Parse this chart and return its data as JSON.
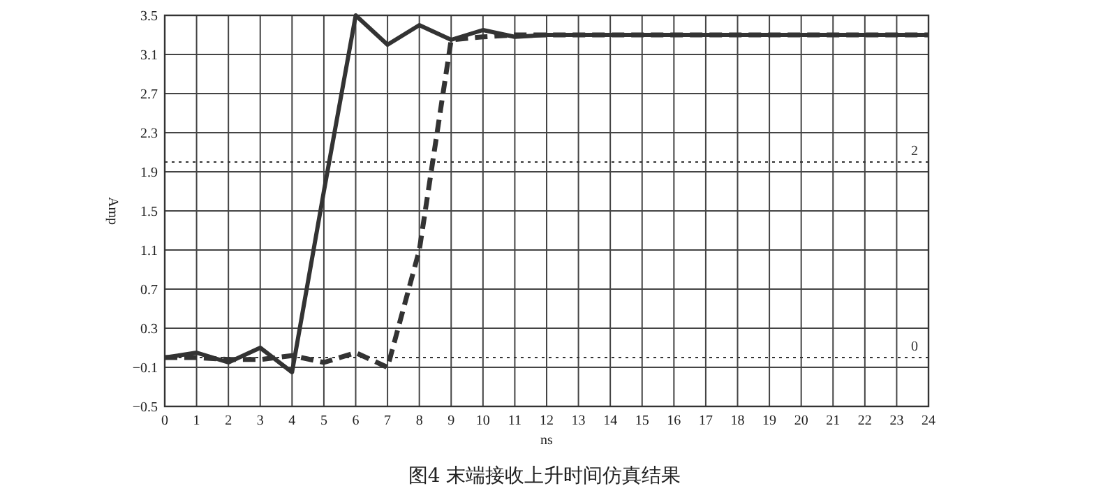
{
  "chart_data": {
    "type": "line",
    "xlabel": "ns",
    "ylabel": "Amp",
    "x": [
      0,
      1,
      2,
      3,
      4,
      5,
      6,
      7,
      8,
      9,
      10,
      11,
      12,
      13,
      14,
      15,
      16,
      17,
      18,
      19,
      20,
      21,
      22,
      23,
      24
    ],
    "series": [
      {
        "color": "#333333",
        "line_style": "solid",
        "values": [
          0.0,
          0.05,
          -0.05,
          0.1,
          -0.15,
          1.7,
          3.5,
          3.2,
          3.4,
          3.25,
          3.35,
          3.28,
          3.3,
          3.3,
          3.3,
          3.3,
          3.3,
          3.3,
          3.3,
          3.3,
          3.3,
          3.3,
          3.3,
          3.3,
          3.3
        ]
      },
      {
        "color": "#333333",
        "line_style": "dashed",
        "values": [
          0.0,
          0.0,
          -0.02,
          -0.02,
          0.02,
          -0.05,
          0.05,
          -0.1,
          1.1,
          3.25,
          3.28,
          3.3,
          3.3,
          3.3,
          3.3,
          3.3,
          3.3,
          3.3,
          3.3,
          3.3,
          3.3,
          3.3,
          3.3,
          3.3,
          3.3
        ]
      }
    ],
    "xlim": [
      0,
      24
    ],
    "xticks": [
      0,
      1,
      2,
      3,
      4,
      5,
      6,
      7,
      8,
      9,
      10,
      11,
      12,
      13,
      14,
      15,
      16,
      17,
      18,
      19,
      20,
      21,
      22,
      23,
      24
    ],
    "ylim": [
      -0.5,
      3.5
    ],
    "yticks": [
      -0.5,
      -0.1,
      0.3,
      0.7,
      1.1,
      1.5,
      1.9,
      2.3,
      2.7,
      3.1,
      3.5
    ],
    "grid": true,
    "marker": "none",
    "ref_lines": [
      {
        "axis": "y",
        "value": 2,
        "label": "2",
        "line_style": "dotted",
        "color": "#333333"
      },
      {
        "axis": "y",
        "value": 0,
        "label": "0",
        "line_style": "dotted",
        "color": "#333333"
      }
    ],
    "annotations": [
      "图4 末端接收上升时间仿真结果"
    ]
  }
}
